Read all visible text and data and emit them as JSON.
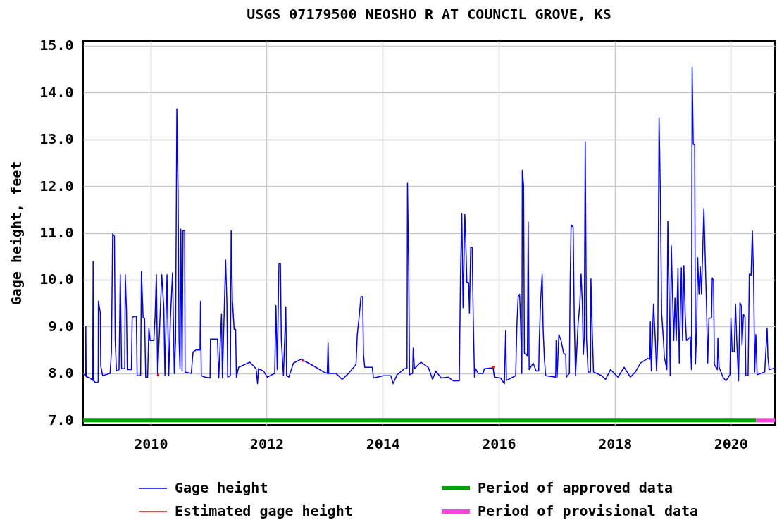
{
  "chart_data": {
    "type": "line",
    "title": "USGS 07179500 NEOSHO R AT COUNCIL GROVE, KS",
    "ylabel": "Gage height, feet",
    "xlim": [
      "2008-11-02",
      "2020-10-05"
    ],
    "ylim": [
      6.9,
      15.1
    ],
    "xticks": [
      "2010",
      "2012",
      "2014",
      "2016",
      "2018",
      "2020"
    ],
    "yticks": [
      {
        "value": 7,
        "label": "7.0"
      },
      {
        "value": 8,
        "label": "8.0"
      },
      {
        "value": 9,
        "label": "9.0"
      },
      {
        "value": 10,
        "label": "10.0"
      },
      {
        "value": 11,
        "label": "11.0"
      },
      {
        "value": 12,
        "label": "12.0"
      },
      {
        "value": 13,
        "label": "13.0"
      },
      {
        "value": 14,
        "label": "14.0"
      },
      {
        "value": 15,
        "label": "15.0"
      }
    ],
    "grid": true,
    "legend": "bottom",
    "series": [
      {
        "name": "Gage height",
        "color": "#0000ff",
        "x": [
          "2008-11-02",
          "2008-11-18",
          "2008-11-19",
          "2008-11-21",
          "2008-12-16",
          "2009-01-01",
          "2009-01-04",
          "2009-01-06",
          "2009-01-20",
          "2009-02-05",
          "2009-02-06",
          "2009-02-18",
          "2009-02-21",
          "2009-03-05",
          "2009-04-21",
          "2009-04-29",
          "2009-05-07",
          "2009-05-18",
          "2009-05-23",
          "2009-05-31",
          "2009-06-16",
          "2009-06-24",
          "2009-07-02",
          "2009-07-22",
          "2009-07-25",
          "2009-08-02",
          "2009-08-07",
          "2009-09-02",
          "2009-09-07",
          "2009-10-03",
          "2009-10-08",
          "2009-10-30",
          "2009-11-04",
          "2009-11-15",
          "2009-11-24",
          "2009-12-01",
          "2009-12-13",
          "2009-12-21",
          "2009-12-29",
          "2010-01-21",
          "2010-01-29",
          "2010-02-06",
          "2010-02-14",
          "2010-03-01",
          "2010-03-12",
          "2010-03-25",
          "2010-04-01",
          "2010-04-14",
          "2010-04-25",
          "2010-05-06",
          "2010-05-19",
          "2010-05-30",
          "2010-06-07",
          "2010-06-15",
          "2010-06-23",
          "2010-06-29",
          "2010-07-05",
          "2010-07-10",
          "2010-07-18",
          "2010-07-24",
          "2010-08-03",
          "2010-08-06",
          "2010-09-14",
          "2010-09-25",
          "2010-10-15",
          "2010-11-08",
          "2010-11-11",
          "2010-11-16",
          "2010-12-09",
          "2011-01-10",
          "2011-01-13",
          "2011-02-26",
          "2011-03-06",
          "2011-03-23",
          "2011-03-29",
          "2011-04-18",
          "2011-04-26",
          "2011-05-01",
          "2011-05-18",
          "2011-05-23",
          "2011-05-31",
          "2011-06-11",
          "2011-06-20",
          "2011-06-25",
          "2011-07-09",
          "2011-09-18",
          "2011-10-27",
          "2011-11-05",
          "2011-11-11",
          "2011-12-13",
          "2012-01-05",
          "2012-02-21",
          "2012-02-29",
          "2012-03-08",
          "2012-03-19",
          "2012-03-28",
          "2012-04-03",
          "2012-04-16",
          "2012-05-01",
          "2012-05-06",
          "2012-05-20",
          "2012-06-18",
          "2012-08-05",
          "2012-09-21",
          "2012-11-07",
          "2012-12-25",
          "2013-01-17",
          "2013-01-22",
          "2013-01-26",
          "2013-03-13",
          "2013-04-21",
          "2013-05-31",
          "2013-07-17",
          "2013-07-25",
          "2013-08-05",
          "2013-08-17",
          "2013-08-28",
          "2013-09-02",
          "2013-09-10",
          "2013-10-27",
          "2013-11-04",
          "2014-01-05",
          "2014-02-21",
          "2014-03-08",
          "2014-04-01",
          "2014-05-18",
          "2014-06-03",
          "2014-06-06",
          "2014-06-14",
          "2014-06-19",
          "2014-07-08",
          "2014-07-12",
          "2014-07-20",
          "2014-08-29",
          "2014-10-15",
          "2014-11-11",
          "2014-12-01",
          "2015-01-04",
          "2015-02-17",
          "2015-03-20",
          "2015-04-28",
          "2015-05-06",
          "2015-05-14",
          "2015-05-22",
          "2015-06-02",
          "2015-06-07",
          "2015-06-15",
          "2015-06-26",
          "2015-07-01",
          "2015-07-09",
          "2015-07-18",
          "2015-07-25",
          "2015-08-02",
          "2015-08-09",
          "2015-08-25",
          "2015-09-25",
          "2015-10-03",
          "2015-11-27",
          "2015-12-05",
          "2016-01-13",
          "2016-02-06",
          "2016-02-14",
          "2016-02-19",
          "2016-04-17",
          "2016-04-25",
          "2016-05-03",
          "2016-05-12",
          "2016-05-18",
          "2016-05-26",
          "2016-05-29",
          "2016-06-06",
          "2016-06-11",
          "2016-06-30",
          "2016-07-05",
          "2016-07-11",
          "2016-08-05",
          "2016-08-24",
          "2016-09-09",
          "2016-09-13",
          "2016-09-21",
          "2016-10-01",
          "2016-10-07",
          "2016-10-15",
          "2016-10-23",
          "2016-12-25",
          "2016-12-28",
          "2017-01-03",
          "2017-01-14",
          "2017-01-28",
          "2017-02-13",
          "2017-02-26",
          "2017-03-02",
          "2017-03-21",
          "2017-03-26",
          "2017-04-01",
          "2017-04-14",
          "2017-04-21",
          "2017-04-29",
          "2017-05-15",
          "2017-05-26",
          "2017-06-03",
          "2017-06-11",
          "2017-06-17",
          "2017-06-23",
          "2017-06-29",
          "2017-07-07",
          "2017-07-17",
          "2017-08-01",
          "2017-08-04",
          "2017-08-12",
          "2017-08-20",
          "2017-10-11",
          "2017-11-04",
          "2017-12-05",
          "2018-01-21",
          "2018-03-01",
          "2018-04-09",
          "2018-05-11",
          "2018-06-11",
          "2018-07-28",
          "2018-08-10",
          "2018-08-13",
          "2018-08-19",
          "2018-09-02",
          "2018-09-13",
          "2018-09-21",
          "2018-09-29",
          "2018-10-07",
          "2018-10-15",
          "2018-10-23",
          "2018-11-03",
          "2018-11-09",
          "2018-11-25",
          "2018-12-01",
          "2018-12-09",
          "2018-12-16",
          "2018-12-23",
          "2019-01-07",
          "2019-01-15",
          "2019-01-23",
          "2019-02-03",
          "2019-02-11",
          "2019-02-24",
          "2019-03-04",
          "2019-03-12",
          "2019-03-20",
          "2019-03-28",
          "2019-04-21",
          "2019-04-29",
          "2019-05-03",
          "2019-05-10",
          "2019-05-19",
          "2019-05-24",
          "2019-05-31",
          "2019-06-07",
          "2019-06-15",
          "2019-06-23",
          "2019-07-01",
          "2019-07-16",
          "2019-07-24",
          "2019-08-02",
          "2019-08-09",
          "2019-08-17",
          "2019-09-02",
          "2019-09-07",
          "2019-09-15",
          "2019-09-20",
          "2019-10-09",
          "2019-10-12",
          "2019-10-20",
          "2019-11-13",
          "2019-12-02",
          "2019-12-27",
          "2020-01-02",
          "2020-01-10",
          "2020-01-23",
          "2020-01-31",
          "2020-02-08",
          "2020-02-19",
          "2020-02-28",
          "2020-03-07",
          "2020-03-12",
          "2020-03-21",
          "2020-03-31",
          "2020-04-05",
          "2020-04-19",
          "2020-04-27",
          "2020-05-08",
          "2020-05-16",
          "2020-05-24",
          "2020-05-31",
          "2020-06-07",
          "2020-06-15",
          "2020-08-02",
          "2020-08-17",
          "2020-08-22",
          "2020-08-30",
          "2020-10-05"
        ],
        "values": [
          7.98,
          7.96,
          9.0,
          7.93,
          7.9,
          7.85,
          10.39,
          7.85,
          7.8,
          7.82,
          9.54,
          9.3,
          8.16,
          7.95,
          8.0,
          8.45,
          10.98,
          10.93,
          8.7,
          8.05,
          8.08,
          10.11,
          8.1,
          8.1,
          10.11,
          9.36,
          8.08,
          8.08,
          9.2,
          9.22,
          7.95,
          7.95,
          10.18,
          9.18,
          9.18,
          7.92,
          7.92,
          8.97,
          8.7,
          8.7,
          9.2,
          10.11,
          7.95,
          9.2,
          10.11,
          9.4,
          7.95,
          10.11,
          7.95,
          9.2,
          10.15,
          8.0,
          8.7,
          13.65,
          11.84,
          8.7,
          8.1,
          11.08,
          8.05,
          11.05,
          11.05,
          8.03,
          8.0,
          8.46,
          8.5,
          8.5,
          9.54,
          7.95,
          7.92,
          7.9,
          8.73,
          8.73,
          7.9,
          9.27,
          7.9,
          10.42,
          9.54,
          7.92,
          7.95,
          11.05,
          9.54,
          8.94,
          8.94,
          7.92,
          8.13,
          8.24,
          8.1,
          7.78,
          8.1,
          8.05,
          7.92,
          8.0,
          9.45,
          8.08,
          10.35,
          10.35,
          8.7,
          7.95,
          9.42,
          7.95,
          7.92,
          8.22,
          8.3,
          8.22,
          8.13,
          8.03,
          8.0,
          8.65,
          8.0,
          8.0,
          7.87,
          8.0,
          8.19,
          8.83,
          9.18,
          9.64,
          9.64,
          8.4,
          8.13,
          8.13,
          7.9,
          7.95,
          7.95,
          7.78,
          7.97,
          8.1,
          8.1,
          12.06,
          10.12,
          7.97,
          8.0,
          8.54,
          8.1,
          8.24,
          8.13,
          7.87,
          8.05,
          7.9,
          7.92,
          7.84,
          7.84,
          10.15,
          11.41,
          9.4,
          11.39,
          10.93,
          9.94,
          9.94,
          9.29,
          10.69,
          10.69,
          9.18,
          7.92,
          8.1,
          8.0,
          8.0,
          8.1,
          8.12,
          7.92,
          7.9,
          7.78,
          8.91,
          7.85,
          7.95,
          9.05,
          9.64,
          9.69,
          9.1,
          8.0,
          12.34,
          12.0,
          8.43,
          8.38,
          11.23,
          8.08,
          8.22,
          8.05,
          8.05,
          8.73,
          9.54,
          10.12,
          8.94,
          8.3,
          7.95,
          7.92,
          8.7,
          7.92,
          8.83,
          8.7,
          8.43,
          8.4,
          7.92,
          8.0,
          9.88,
          11.17,
          11.12,
          9.18,
          7.95,
          9.05,
          9.48,
          10.12,
          9.48,
          8.4,
          8.75,
          12.95,
          8.75,
          8.03,
          8.03,
          10.02,
          8.91,
          8.03,
          7.95,
          7.87,
          8.08,
          7.92,
          8.13,
          7.92,
          8.03,
          8.22,
          8.32,
          8.3,
          9.1,
          8.05,
          9.48,
          8.73,
          8.05,
          8.75,
          13.46,
          11.84,
          9.29,
          8.73,
          8.35,
          8.08,
          11.25,
          9.69,
          7.95,
          10.72,
          8.7,
          9.61,
          8.7,
          10.24,
          8.22,
          10.26,
          8.7,
          10.3,
          9.29,
          8.7,
          8.78,
          8.08,
          14.54,
          12.89,
          12.89,
          8.2,
          8.9,
          10.47,
          9.7,
          10.28,
          9.7,
          11.52,
          10.53,
          9.37,
          8.22,
          9.18,
          9.18,
          10.04,
          9.98,
          8.19,
          8.08,
          8.75,
          8.13,
          7.92,
          7.84,
          7.97,
          9.18,
          8.46,
          8.46,
          9.48,
          8.7,
          7.84,
          9.51,
          9.45,
          8.6,
          9.26,
          9.2,
          7.95,
          7.95,
          10.12,
          10.09,
          11.04,
          10.04,
          8.03,
          8.83,
          7.97,
          8.03,
          8.97,
          8.35,
          8.08,
          8.11
        ]
      },
      {
        "name": "Estimated gage height",
        "color": "#ff0000",
        "type": "scatter",
        "marker": "square",
        "x": [
          "2010-02-17",
          "2012-08-15",
          "2015-11-28"
        ],
        "values": [
          7.97,
          8.27,
          8.13
        ]
      },
      {
        "name": "Period of approved data",
        "color": "#00a000",
        "x": [
          "2008-11-02",
          "2020-06-09"
        ],
        "values": [
          7,
          7
        ]
      },
      {
        "name": "Period of provisional data",
        "color": "#ff44dd",
        "x": [
          "2020-06-09",
          "2020-10-05"
        ],
        "values": [
          7,
          7
        ]
      }
    ]
  }
}
